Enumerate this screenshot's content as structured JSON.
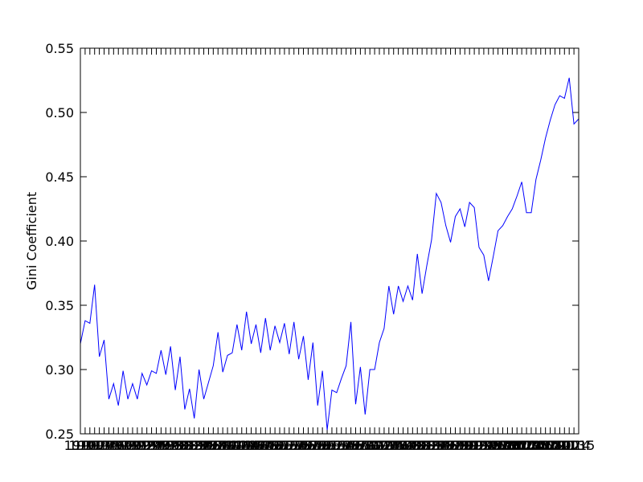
{
  "chart_data": {
    "type": "line",
    "y_label": "Gini Coefficient",
    "x": [
      1910,
      1911,
      1912,
      1913,
      1914,
      1915,
      1916,
      1917,
      1918,
      1919,
      1920,
      1921,
      1922,
      1923,
      1924,
      1925,
      1926,
      1927,
      1928,
      1929,
      1930,
      1931,
      1932,
      1933,
      1934,
      1935,
      1936,
      1937,
      1938,
      1939,
      1940,
      1941,
      1942,
      1943,
      1944,
      1945,
      1946,
      1947,
      1948,
      1949,
      1950,
      1951,
      1952,
      1953,
      1954,
      1955,
      1956,
      1957,
      1958,
      1959,
      1960,
      1961,
      1962,
      1963,
      1964,
      1965,
      1966,
      1967,
      1968,
      1969,
      1970,
      1971,
      1972,
      1973,
      1974,
      1975,
      1976,
      1977,
      1978,
      1979,
      1980,
      1981,
      1982,
      1983,
      1984,
      1985,
      1986,
      1987,
      1988,
      1989,
      1990,
      1991,
      1992,
      1993,
      1994,
      1995,
      1996,
      1997,
      1998,
      1999,
      2000,
      2001,
      2002,
      2003,
      2004,
      2005,
      2006,
      2007,
      2008,
      2009,
      2010,
      2011,
      2012,
      2013,
      2014,
      2015
    ],
    "xlim": [
      1910,
      2015
    ],
    "series": [
      {
        "color": "#0000ff",
        "values": [
          0.32,
          0.338,
          0.336,
          0.366,
          0.31,
          0.323,
          0.277,
          0.289,
          0.272,
          0.299,
          0.277,
          0.289,
          0.277,
          0.297,
          0.288,
          0.299,
          0.297,
          0.315,
          0.296,
          0.318,
          0.284,
          0.31,
          0.269,
          0.285,
          0.262,
          0.3,
          0.277,
          0.29,
          0.303,
          0.329,
          0.298,
          0.311,
          0.313,
          0.335,
          0.315,
          0.345,
          0.32,
          0.335,
          0.313,
          0.34,
          0.315,
          0.334,
          0.321,
          0.336,
          0.312,
          0.337,
          0.308,
          0.326,
          0.292,
          0.321,
          0.272,
          0.299,
          0.253,
          0.284,
          0.282,
          0.293,
          0.303,
          0.337,
          0.273,
          0.302,
          0.265,
          0.3,
          0.3,
          0.321,
          0.332,
          0.365,
          0.343,
          0.365,
          0.353,
          0.365,
          0.354,
          0.39,
          0.359,
          0.381,
          0.401,
          0.437,
          0.43,
          0.412,
          0.399,
          0.419,
          0.425,
          0.411,
          0.43,
          0.426,
          0.395,
          0.389,
          0.369,
          0.388,
          0.408,
          0.412,
          0.419,
          0.425,
          0.435,
          0.446,
          0.422,
          0.422,
          0.448,
          0.463,
          0.48,
          0.494,
          0.506,
          0.513,
          0.511,
          0.527,
          0.491,
          0.495
        ]
      }
    ],
    "ylim": [
      0.25,
      0.55
    ],
    "yticks": [
      0.25,
      {
        "value": 0.3,
        "label": "0.30"
      },
      0.35,
      {
        "value": 0.4,
        "label": "0.40"
      },
      0.45,
      {
        "value": 0.5,
        "label": "0.50"
      },
      0.55
    ],
    "grid": false
  }
}
